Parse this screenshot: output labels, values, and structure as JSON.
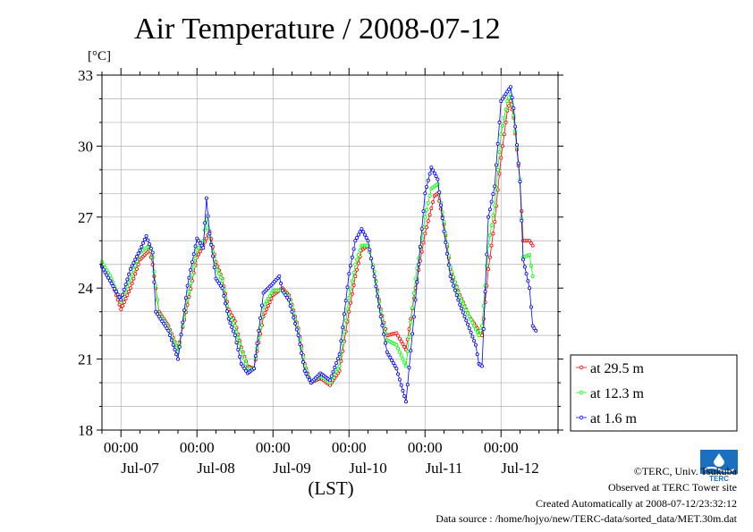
{
  "chart_data": {
    "type": "line",
    "title": "Air Temperature / 2008-07-12",
    "ylabel": "[°C]",
    "xlabel": "(LST)",
    "ylim": [
      18,
      33
    ],
    "yticks": [
      18,
      21,
      24,
      27,
      30,
      33
    ],
    "xlim": [
      0,
      144
    ],
    "x_unit": "hours from 2008-07-06 18:00 LST",
    "x_tick_times": [
      {
        "x": 6,
        "label": "00:00"
      },
      {
        "x": 30,
        "label": "00:00"
      },
      {
        "x": 54,
        "label": "00:00"
      },
      {
        "x": 78,
        "label": "00:00"
      },
      {
        "x": 102,
        "label": "00:00"
      },
      {
        "x": 126,
        "label": "00:00"
      }
    ],
    "x_tick_days": [
      {
        "x": 12,
        "label": "Jul-07"
      },
      {
        "x": 36,
        "label": "Jul-08"
      },
      {
        "x": 60,
        "label": "Jul-09"
      },
      {
        "x": 84,
        "label": "Jul-10"
      },
      {
        "x": 108,
        "label": "Jul-11"
      },
      {
        "x": 132,
        "label": "Jul-12"
      }
    ],
    "grid": true,
    "legend_position": "right",
    "series": [
      {
        "name": "at 29.5 m",
        "color": "#ff0000",
        "points": [
          [
            0,
            25.0
          ],
          [
            3,
            24.3
          ],
          [
            6,
            23.1
          ],
          [
            9,
            24.0
          ],
          [
            12,
            25.2
          ],
          [
            15,
            25.6
          ],
          [
            16,
            25.0
          ],
          [
            18,
            23.0
          ],
          [
            21,
            22.4
          ],
          [
            24,
            21.4
          ],
          [
            27,
            23.3
          ],
          [
            30,
            25.3
          ],
          [
            32,
            25.8
          ],
          [
            34,
            26.4
          ],
          [
            36,
            25.1
          ],
          [
            38,
            24.4
          ],
          [
            40,
            23.1
          ],
          [
            42,
            22.6
          ],
          [
            44,
            21.5
          ],
          [
            46,
            20.7
          ],
          [
            48,
            20.6
          ],
          [
            51,
            22.8
          ],
          [
            54,
            23.7
          ],
          [
            57,
            24.0
          ],
          [
            59,
            23.7
          ],
          [
            60,
            23.3
          ],
          [
            62,
            22.3
          ],
          [
            64,
            20.8
          ],
          [
            66,
            20.0
          ],
          [
            69,
            20.2
          ],
          [
            72,
            19.9
          ],
          [
            75,
            20.5
          ],
          [
            78,
            23.0
          ],
          [
            80,
            24.5
          ],
          [
            82,
            25.6
          ],
          [
            84,
            25.8
          ],
          [
            86,
            24.7
          ],
          [
            88,
            23.1
          ],
          [
            90,
            22.0
          ],
          [
            93,
            22.1
          ],
          [
            96,
            21.4
          ],
          [
            99,
            24.0
          ],
          [
            102,
            26.3
          ],
          [
            105,
            27.9
          ],
          [
            106,
            28.0
          ],
          [
            108,
            26.7
          ],
          [
            110,
            24.8
          ],
          [
            113,
            23.7
          ],
          [
            116,
            22.8
          ],
          [
            119,
            22.2
          ],
          [
            120,
            22.0
          ],
          [
            122,
            24.8
          ],
          [
            124,
            26.8
          ],
          [
            126,
            29.5
          ],
          [
            128,
            31.5
          ],
          [
            129,
            31.9
          ],
          [
            130,
            31.2
          ],
          [
            132,
            28.5
          ],
          [
            133,
            26.0
          ],
          [
            135,
            26.0
          ],
          [
            136,
            25.8
          ]
        ]
      },
      {
        "name": "at 12.3 m",
        "color": "#00ff00",
        "points": [
          [
            0,
            25.1
          ],
          [
            3,
            24.4
          ],
          [
            6,
            23.4
          ],
          [
            9,
            24.4
          ],
          [
            12,
            25.5
          ],
          [
            15,
            25.8
          ],
          [
            16,
            25.3
          ],
          [
            18,
            22.9
          ],
          [
            21,
            22.3
          ],
          [
            24,
            21.3
          ],
          [
            27,
            23.5
          ],
          [
            30,
            25.6
          ],
          [
            32,
            26.0
          ],
          [
            33,
            26.9
          ],
          [
            34,
            26.2
          ],
          [
            36,
            24.9
          ],
          [
            38,
            24.3
          ],
          [
            40,
            22.9
          ],
          [
            42,
            22.4
          ],
          [
            44,
            21.4
          ],
          [
            46,
            20.6
          ],
          [
            48,
            20.6
          ],
          [
            51,
            23.2
          ],
          [
            54,
            23.9
          ],
          [
            57,
            23.9
          ],
          [
            59,
            23.6
          ],
          [
            60,
            23.2
          ],
          [
            62,
            22.2
          ],
          [
            64,
            20.7
          ],
          [
            66,
            20.0
          ],
          [
            69,
            20.3
          ],
          [
            72,
            20.0
          ],
          [
            75,
            20.7
          ],
          [
            78,
            23.6
          ],
          [
            80,
            25.0
          ],
          [
            82,
            25.8
          ],
          [
            84,
            25.8
          ],
          [
            86,
            24.7
          ],
          [
            88,
            23.0
          ],
          [
            90,
            21.8
          ],
          [
            93,
            21.6
          ],
          [
            96,
            20.7
          ],
          [
            99,
            24.4
          ],
          [
            102,
            27.0
          ],
          [
            104,
            28.2
          ],
          [
            106,
            28.4
          ],
          [
            108,
            26.8
          ],
          [
            110,
            24.9
          ],
          [
            113,
            23.6
          ],
          [
            116,
            22.8
          ],
          [
            119,
            22.0
          ],
          [
            120,
            22.4
          ],
          [
            122,
            25.8
          ],
          [
            124,
            27.5
          ],
          [
            126,
            30.5
          ],
          [
            128,
            31.9
          ],
          [
            129,
            32.2
          ],
          [
            130,
            31.3
          ],
          [
            132,
            28.6
          ],
          [
            133,
            25.3
          ],
          [
            135,
            25.4
          ],
          [
            136,
            24.5
          ]
        ]
      },
      {
        "name": "at 1.6 m",
        "color": "#0000ff",
        "points": [
          [
            0,
            24.9
          ],
          [
            3,
            24.2
          ],
          [
            6,
            23.5
          ],
          [
            9,
            24.8
          ],
          [
            12,
            25.6
          ],
          [
            14,
            26.2
          ],
          [
            16,
            25.5
          ],
          [
            17,
            23.0
          ],
          [
            21,
            22.2
          ],
          [
            24,
            21.0
          ],
          [
            27,
            24.1
          ],
          [
            30,
            26.1
          ],
          [
            32,
            25.7
          ],
          [
            33,
            27.8
          ],
          [
            34,
            26.3
          ],
          [
            36,
            24.4
          ],
          [
            38,
            24.0
          ],
          [
            40,
            22.7
          ],
          [
            42,
            22.0
          ],
          [
            44,
            20.8
          ],
          [
            46,
            20.4
          ],
          [
            48,
            20.6
          ],
          [
            51,
            23.8
          ],
          [
            54,
            24.2
          ],
          [
            56,
            24.5
          ],
          [
            57,
            23.9
          ],
          [
            59,
            23.5
          ],
          [
            60,
            23.0
          ],
          [
            62,
            22.0
          ],
          [
            64,
            20.5
          ],
          [
            66,
            20.0
          ],
          [
            69,
            20.4
          ],
          [
            72,
            20.1
          ],
          [
            75,
            21.2
          ],
          [
            78,
            24.6
          ],
          [
            80,
            26.0
          ],
          [
            82,
            26.5
          ],
          [
            84,
            26.0
          ],
          [
            86,
            24.5
          ],
          [
            88,
            22.8
          ],
          [
            90,
            21.3
          ],
          [
            93,
            20.6
          ],
          [
            96,
            19.2
          ],
          [
            99,
            23.5
          ],
          [
            102,
            28.0
          ],
          [
            104,
            29.1
          ],
          [
            106,
            28.6
          ],
          [
            108,
            26.4
          ],
          [
            110,
            24.5
          ],
          [
            113,
            23.3
          ],
          [
            116,
            22.3
          ],
          [
            118,
            21.6
          ],
          [
            119,
            20.8
          ],
          [
            120,
            20.7
          ],
          [
            122,
            27.0
          ],
          [
            124,
            28.3
          ],
          [
            126,
            31.9
          ],
          [
            128,
            32.3
          ],
          [
            129,
            32.5
          ],
          [
            130,
            31.6
          ],
          [
            132,
            28.5
          ],
          [
            133,
            25.2
          ],
          [
            135,
            24.0
          ],
          [
            136,
            22.4
          ],
          [
            137,
            22.2
          ]
        ]
      }
    ]
  },
  "footer": {
    "copyright": "©TERC, Univ. Tsukuba",
    "observed": "Observed at TERC Tower site",
    "created": "Created Automatically at 2008-07-12/23:32:12",
    "source": "Data source : /home/hojyo/new/TERC-data/sorted_data/MET.30m.dat"
  },
  "logo": {
    "text": "TERC",
    "icon": "terc-logo-icon",
    "color": "#1a6fc0"
  }
}
